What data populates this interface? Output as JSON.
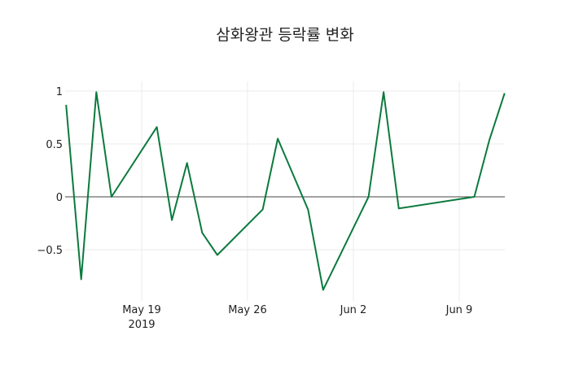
{
  "chart_data": {
    "type": "line",
    "title": "삼화왕관 등락률 변화",
    "xlabel": "",
    "ylabel": "",
    "x": [
      "2019-05-14",
      "2019-05-15",
      "2019-05-16",
      "2019-05-17",
      "2019-05-20",
      "2019-05-21",
      "2019-05-22",
      "2019-05-23",
      "2019-05-24",
      "2019-05-27",
      "2019-05-28",
      "2019-05-30",
      "2019-05-31",
      "2019-06-03",
      "2019-06-04",
      "2019-06-05",
      "2019-06-10",
      "2019-06-11",
      "2019-06-12"
    ],
    "series": [
      {
        "name": "등락률",
        "color": "#0b7a3e",
        "values": [
          0.87,
          -0.78,
          0.99,
          0.0,
          0.66,
          -0.22,
          0.32,
          -0.34,
          -0.55,
          -0.12,
          0.55,
          -0.12,
          -0.88,
          0.0,
          0.99,
          -0.11,
          0.0,
          0.54,
          0.98
        ]
      }
    ],
    "x_ticks": [
      {
        "label": "May 19",
        "sub": "2019",
        "date": "2019-05-19"
      },
      {
        "label": "May 26",
        "sub": "",
        "date": "2019-05-26"
      },
      {
        "label": "Jun 2",
        "sub": "",
        "date": "2019-06-02"
      },
      {
        "label": "Jun 9",
        "sub": "",
        "date": "2019-06-09"
      }
    ],
    "y_ticks": [
      {
        "label": "1",
        "value": 1
      },
      {
        "label": "0.5",
        "value": 0.5
      },
      {
        "label": "0",
        "value": 0
      },
      {
        "label": "−0.5",
        "value": -0.5
      }
    ],
    "ylim": [
      -0.92,
      1.05
    ],
    "grid": true,
    "legend": false
  }
}
